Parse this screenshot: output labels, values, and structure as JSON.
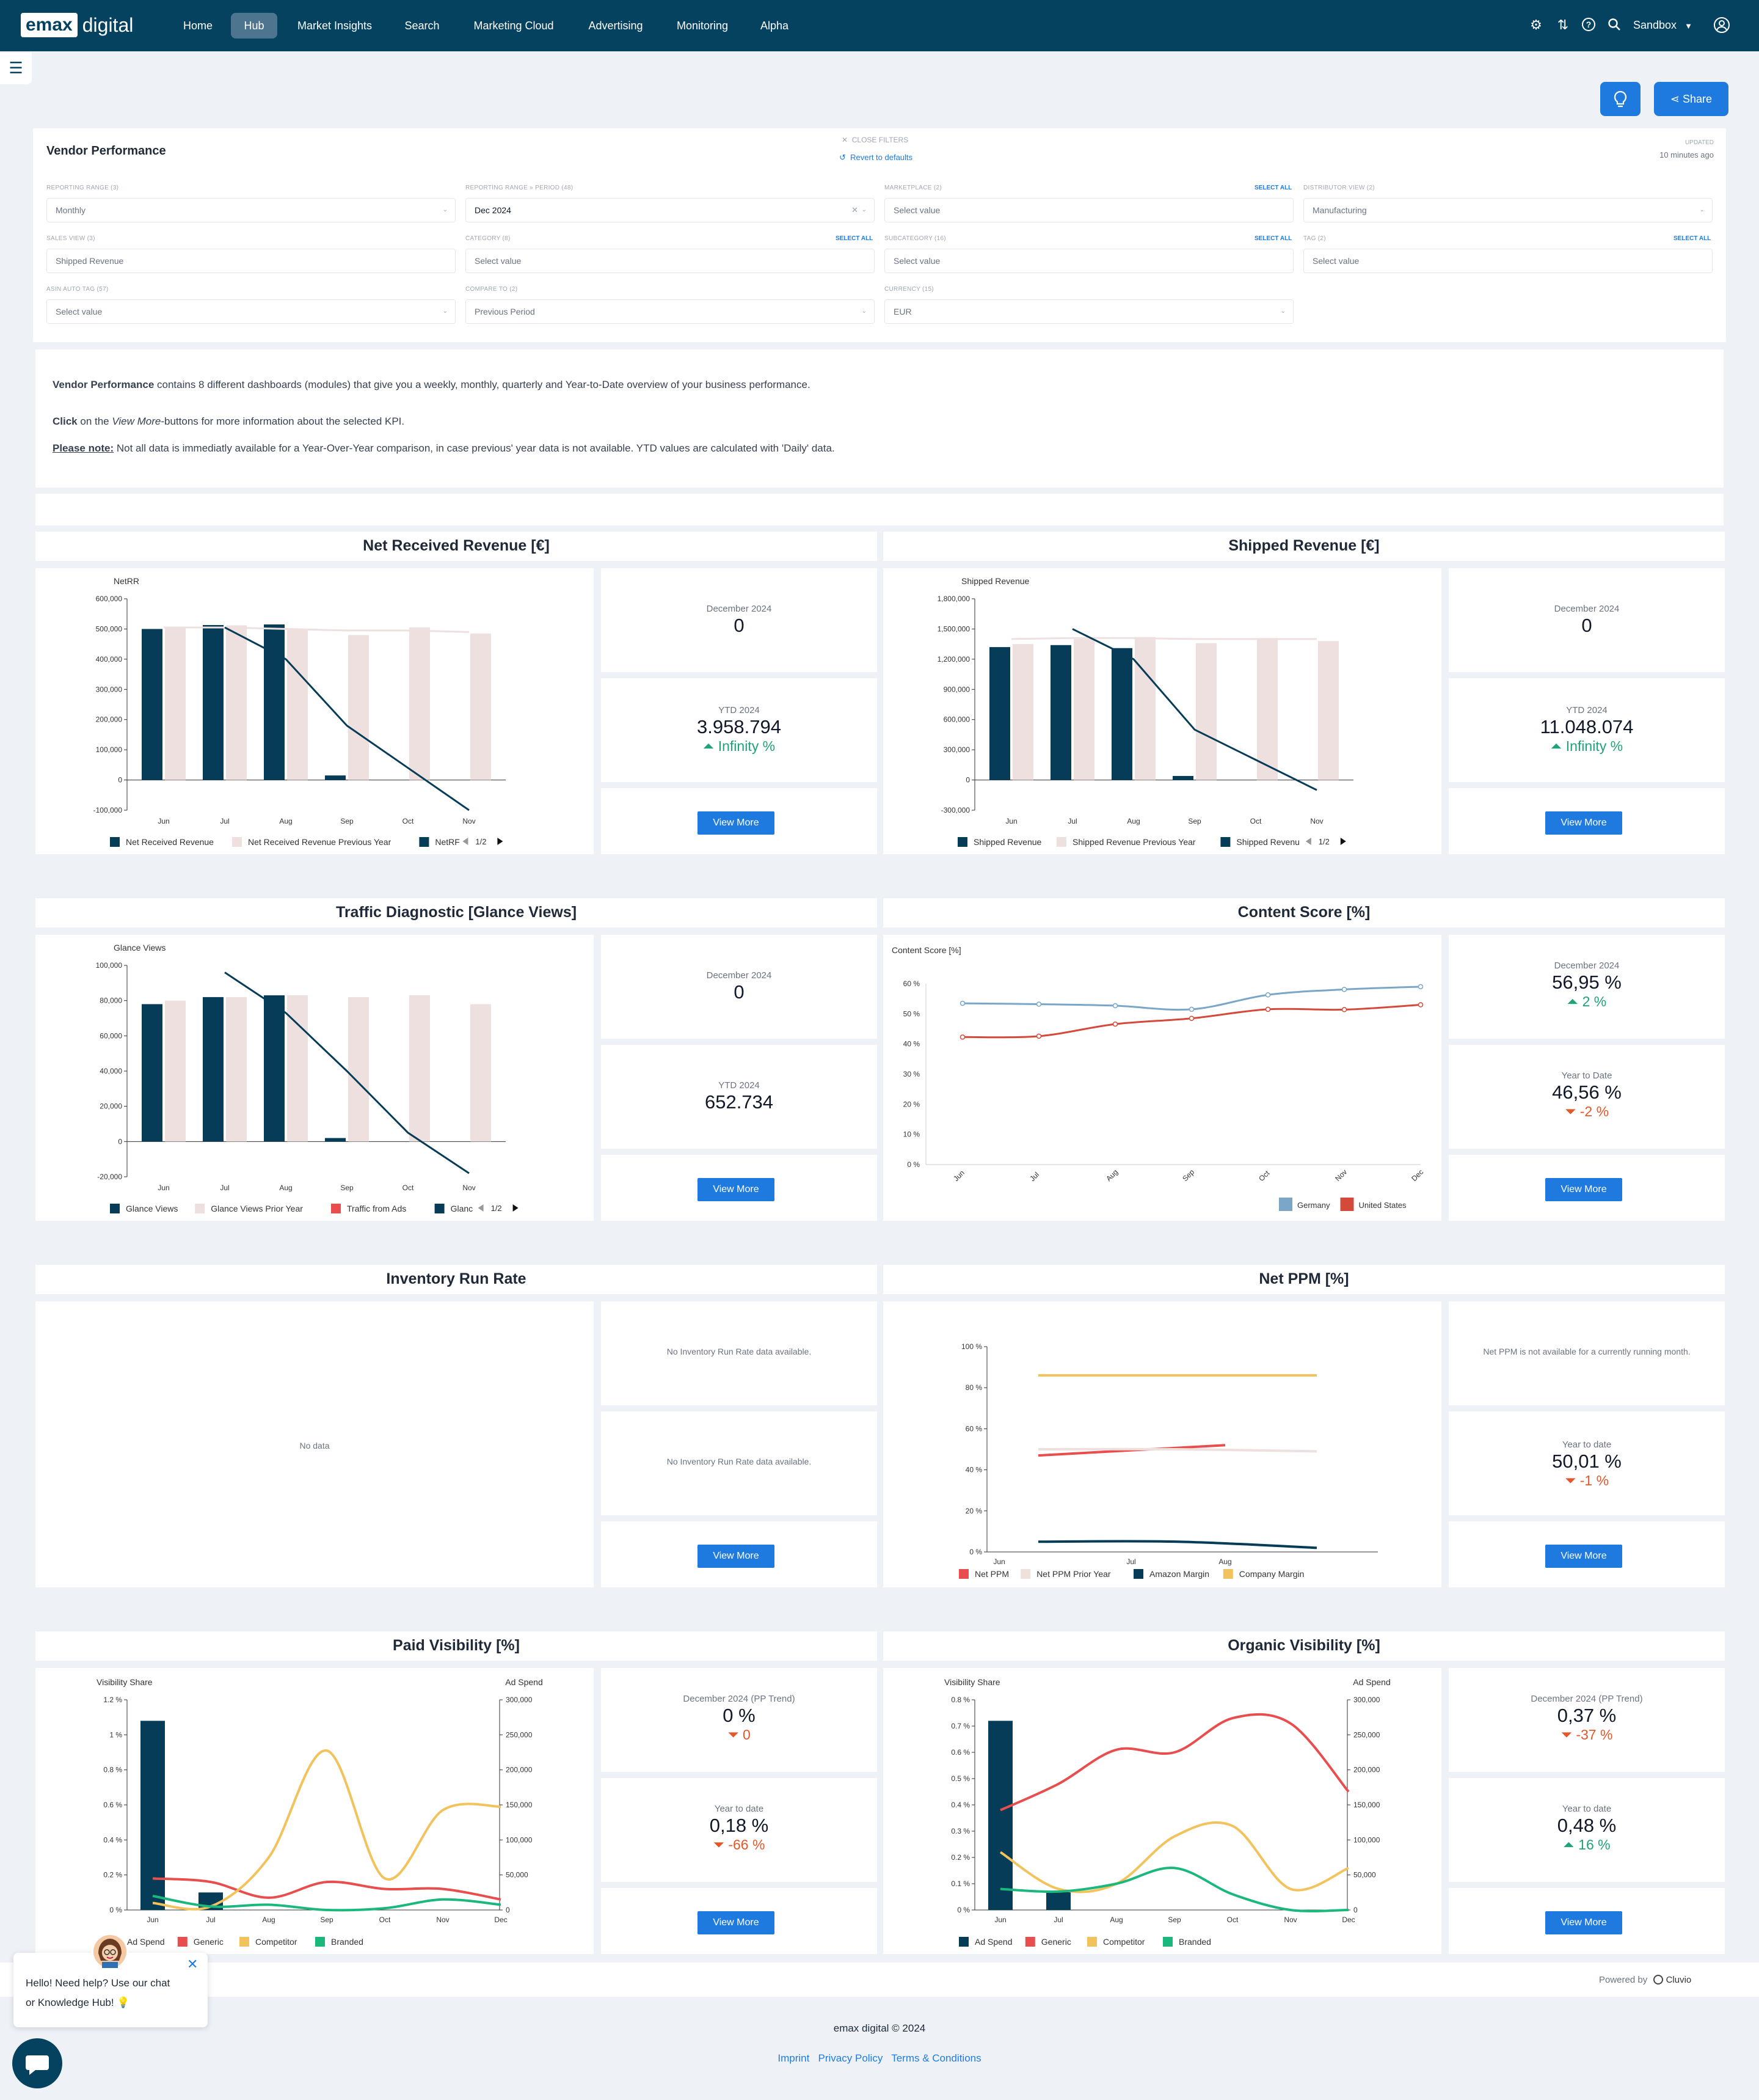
{
  "topbar": {
    "logo_box": "emax",
    "logo_text": "digital",
    "nav": [
      "Home",
      "Hub",
      "Market Insights",
      "Search",
      "Marketing Cloud",
      "Advertising",
      "Monitoring",
      "Alpha"
    ],
    "user": "Sandbox"
  },
  "actions": {
    "share": "Share"
  },
  "filters": {
    "title": "Vendor Performance",
    "close_filters": "CLOSE FILTERS",
    "revert": "Revert to defaults",
    "updated_label": "UPDATED",
    "updated_value": "10 minutes ago",
    "select_all": "SELECT ALL",
    "fields": [
      {
        "label": "REPORTING RANGE (3)",
        "value": "Monthly"
      },
      {
        "label": "REPORTING RANGE » PERIOD (48)",
        "value": "Dec 2024"
      },
      {
        "label": "MARKETPLACE (2)",
        "value": "Select value"
      },
      {
        "label": "DISTRIBUTOR VIEW (2)",
        "value": "Manufacturing"
      },
      {
        "label": "SALES VIEW (3)",
        "value": "Shipped Revenue"
      },
      {
        "label": "CATEGORY (8)",
        "value": "Select value"
      },
      {
        "label": "SUBCATEGORY (16)",
        "value": "Select value"
      },
      {
        "label": "TAG (2)",
        "value": "Select value"
      },
      {
        "label": "ASIN AUTO TAG (57)",
        "value": "Select value"
      },
      {
        "label": "COMPARE TO (2)",
        "value": "Previous Period"
      },
      {
        "label": "CURRENCY (15)",
        "value": "EUR"
      }
    ]
  },
  "info": {
    "l1_bold": "Vendor Performance",
    "l1_rest": " contains 8 different dashboards (modules) that give you a weekly, monthly, quarterly and Year-to-Date overview of your business performance.",
    "l2_bold": "Click",
    "l2_mid": " on the ",
    "l2_italic": "View More",
    "l2_rest": "-buttons for more information about the selected KPI.",
    "l3_bold": "Please note:",
    "l3_rest": " Not all data is immediatly available for a Year-Over-Year comparison, in case previous' year data is not available. YTD values are calculated with 'Daily' data."
  },
  "view_more": "View More",
  "pager": "1/2",
  "modules": {
    "nrr": {
      "title": "Net Received Revenue [€]",
      "kpi1_label": "December 2024",
      "kpi1_value": "0",
      "kpi2_label": "YTD 2024",
      "kpi2_value": "3.958.794",
      "kpi2_delta": "Infinity %"
    },
    "shipped": {
      "title": "Shipped Revenue [€]",
      "kpi1_label": "December 2024",
      "kpi1_value": "0",
      "kpi2_label": "YTD 2024",
      "kpi2_value": "11.048.074",
      "kpi2_delta": "Infinity %"
    },
    "traffic": {
      "title": "Traffic Diagnostic [Glance Views]",
      "kpi1_label": "December 2024",
      "kpi1_value": "0",
      "kpi2_label": "YTD 2024",
      "kpi2_value": "652.734"
    },
    "content": {
      "title": "Content Score [%]",
      "kpi1_label": "December 2024",
      "kpi1_value": "56,95 %",
      "kpi1_delta": "2 %",
      "kpi2_label": "Year to Date",
      "kpi2_value": "46,56 %",
      "kpi2_delta": "-2 %"
    },
    "inventory": {
      "title": "Inventory Run Rate",
      "no_data": "No data",
      "kpi1_text": "No Inventory Run Rate data available.",
      "kpi2_text": "No Inventory Run Rate data available."
    },
    "ppm": {
      "title": "Net PPM [%]",
      "kpi1_text": "Net PPM is not available for a currently running month.",
      "kpi2_label": "Year to date",
      "kpi2_value": "50,01 %",
      "kpi2_delta": "-1 %"
    },
    "paid": {
      "title": "Paid Visibility [%]",
      "kpi1_label": "December 2024 (PP Trend)",
      "kpi1_value": "0 %",
      "kpi1_delta": "0",
      "kpi2_label": "Year to date",
      "kpi2_value": "0,18 %",
      "kpi2_delta": "-66 %"
    },
    "organic": {
      "title": "Organic Visibility [%]",
      "kpi1_label": "December 2024 (PP Trend)",
      "kpi1_value": "0,37 %",
      "kpi1_delta": "-37 %",
      "kpi2_label": "Year to date",
      "kpi2_value": "0,48 %",
      "kpi2_delta": "16 %"
    }
  },
  "chart_data": [
    {
      "id": "nrr",
      "type": "bar",
      "title": "NetRR",
      "categories": [
        "Jun",
        "Jul",
        "Aug",
        "Sep",
        "Oct",
        "Nov"
      ],
      "ylim": [
        -100000,
        600000
      ],
      "yticks": [
        "600,000",
        "500,000",
        "400,000",
        "300,000",
        "200,000",
        "100,000",
        "0",
        "-100,000"
      ],
      "series": [
        {
          "name": "Net Received Revenue",
          "type": "bar",
          "color": "#063c58",
          "values": [
            500000,
            513000,
            515000,
            15000,
            null,
            null
          ]
        },
        {
          "name": "Net Received Revenue Previous Year",
          "type": "bar",
          "color": "#eee0de",
          "values": [
            505000,
            512000,
            500000,
            480000,
            505000,
            485000
          ]
        },
        {
          "name": "NetRR",
          "type": "line",
          "color": "#063c58",
          "values": [
            null,
            505000,
            400000,
            180000,
            40000,
            -100000
          ]
        },
        {
          "name": "prev-line",
          "type": "line",
          "color": "#eee0de",
          "values": [
            505000,
            505000,
            500000,
            495000,
            495000,
            490000
          ]
        }
      ],
      "legend": [
        "Net Received Revenue",
        "Net Received Revenue Previous Year",
        "NetRF"
      ]
    },
    {
      "id": "shipped",
      "type": "bar",
      "title": "Shipped Revenue",
      "categories": [
        "Jun",
        "Jul",
        "Aug",
        "Sep",
        "Oct",
        "Nov"
      ],
      "ylim": [
        -300000,
        1800000
      ],
      "yticks": [
        "1,800,000",
        "1,500,000",
        "1,200,000",
        "900,000",
        "600,000",
        "300,000",
        "0",
        "-300,000"
      ],
      "series": [
        {
          "name": "Shipped Revenue",
          "type": "bar",
          "color": "#063c58",
          "values": [
            1320000,
            1340000,
            1310000,
            40000,
            null,
            null
          ]
        },
        {
          "name": "Shipped Revenue Previous Year",
          "type": "bar",
          "color": "#eee0de",
          "values": [
            1350000,
            1400000,
            1420000,
            1360000,
            1410000,
            1380000
          ]
        },
        {
          "name": "Shipped Revenue trend",
          "type": "line",
          "color": "#063c58",
          "values": [
            null,
            1500000,
            1200000,
            500000,
            200000,
            -100000
          ]
        },
        {
          "name": "prev-line",
          "type": "line",
          "color": "#eee0de",
          "values": [
            1400000,
            1410000,
            1410000,
            1400000,
            1400000,
            1400000
          ]
        }
      ],
      "legend": [
        "Shipped Revenue",
        "Shipped Revenue Previous Year",
        "Shipped Revenu"
      ]
    },
    {
      "id": "traffic",
      "type": "bar",
      "title": "Glance Views",
      "categories": [
        "Jun",
        "Jul",
        "Aug",
        "Sep",
        "Oct",
        "Nov"
      ],
      "ylim": [
        -20000,
        100000
      ],
      "yticks": [
        "100,000",
        "80,000",
        "60,000",
        "40,000",
        "20,000",
        "0",
        "-20,000"
      ],
      "series": [
        {
          "name": "Glance Views",
          "type": "bar",
          "color": "#063c58",
          "values": [
            78000,
            82000,
            83000,
            2000,
            null,
            null
          ]
        },
        {
          "name": "Glance Views Prior Year",
          "type": "bar",
          "color": "#eee0de",
          "values": [
            80000,
            82000,
            83000,
            82000,
            83000,
            78000
          ]
        },
        {
          "name": "Glance trend",
          "type": "line",
          "color": "#063c58",
          "values": [
            null,
            96000,
            73000,
            40000,
            5000,
            -18000
          ]
        }
      ],
      "legend": [
        "Glance Views",
        "Glance Views Prior Year",
        "Traffic from Ads",
        "Glanc"
      ]
    },
    {
      "id": "content",
      "type": "line",
      "title": "Content Score [%]",
      "categories": [
        "Jun",
        "Jul",
        "Aug",
        "Sep",
        "Oct",
        "Nov",
        "Dec"
      ],
      "ylim": [
        0,
        60
      ],
      "yticks": [
        "60 %",
        "50 %",
        "40 %",
        "30 %",
        "20 %",
        "10 %",
        "0 %"
      ],
      "series": [
        {
          "name": "Germany",
          "color": "#7aa6c7",
          "values": [
            53.5,
            53.2,
            52.7,
            51.5,
            56.3,
            58.1,
            59.0
          ]
        },
        {
          "name": "United States",
          "color": "#d44a3a",
          "values": [
            42.3,
            42.6,
            46.6,
            48.5,
            51.5,
            51.4,
            53.0
          ]
        }
      ]
    },
    {
      "id": "ppm",
      "type": "line",
      "categories": [
        "Jun",
        "Jul",
        "Aug"
      ],
      "ylim": [
        0,
        100
      ],
      "yticks": [
        "100 %",
        "80 %",
        "60 %",
        "40 %",
        "20 %",
        "0 %"
      ],
      "series": [
        {
          "name": "Net PPM",
          "color": "#e84e4e",
          "values": [
            47,
            49.5,
            52
          ]
        },
        {
          "name": "Net PPM Prior Year",
          "color": "#eee0de",
          "values": [
            50,
            50,
            49
          ]
        },
        {
          "name": "Amazon Margin",
          "color": "#063c58",
          "values": [
            5,
            5,
            5
          ]
        },
        {
          "name": "Company Margin",
          "color": "#f2c25c",
          "values": [
            86,
            86,
            86
          ]
        }
      ]
    },
    {
      "id": "paid",
      "type": "bar",
      "y_title": "Visibility Share",
      "y2_title": "Ad Spend",
      "categories": [
        "Jun",
        "Jul",
        "Aug",
        "Sep",
        "Oct",
        "Nov",
        "Dec"
      ],
      "ylim": [
        0,
        1.2
      ],
      "y2lim": [
        0,
        300000
      ],
      "yticks": [
        "1.2 %",
        "1 %",
        "0.8 %",
        "0.6 %",
        "0.4 %",
        "0.2 %",
        "0 %"
      ],
      "y2ticks": [
        "300,000",
        "250,000",
        "200,000",
        "150,000",
        "100,000",
        "50,000",
        "0"
      ],
      "series": [
        {
          "name": "Ad Spend",
          "type": "bar",
          "color": "#063c58",
          "values": [
            1.08,
            0.1,
            0,
            0,
            0,
            0,
            0
          ]
        },
        {
          "name": "Generic",
          "type": "line",
          "color": "#e84e4e",
          "values": [
            0.18,
            0.16,
            0.07,
            0.16,
            0.12,
            0.12,
            0.06
          ]
        },
        {
          "name": "Competitor",
          "type": "line",
          "color": "#f2c25c",
          "values": [
            0.04,
            0.02,
            0.3,
            0.91,
            0.18,
            0.57,
            0.59
          ]
        },
        {
          "name": "Branded",
          "type": "line",
          "color": "#1ab87c",
          "values": [
            0.08,
            0.02,
            0.03,
            0.0,
            0.01,
            0.06,
            0.03
          ]
        }
      ],
      "legend": [
        "Ad Spend",
        "Generic",
        "Competitor",
        "Branded"
      ]
    },
    {
      "id": "organic",
      "type": "bar",
      "y_title": "Visibility Share",
      "y2_title": "Ad Spend",
      "categories": [
        "Jun",
        "Jul",
        "Aug",
        "Sep",
        "Oct",
        "Nov",
        "Dec"
      ],
      "ylim": [
        0,
        0.8
      ],
      "y2lim": [
        0,
        300000
      ],
      "yticks": [
        "0.8 %",
        "0.7 %",
        "0.6 %",
        "0.5 %",
        "0.4 %",
        "0.3 %",
        "0.2 %",
        "0.1 %",
        "0 %"
      ],
      "y2ticks": [
        "300,000",
        "250,000",
        "200,000",
        "150,000",
        "100,000",
        "50,000",
        "0"
      ],
      "series": [
        {
          "name": "Ad Spend",
          "type": "bar",
          "color": "#063c58",
          "values": [
            0.72,
            0.07,
            0,
            0,
            0,
            0,
            0
          ]
        },
        {
          "name": "Generic",
          "type": "line",
          "color": "#e84e4e",
          "values": [
            0.38,
            0.48,
            0.61,
            0.6,
            0.73,
            0.71,
            0.45
          ]
        },
        {
          "name": "Competitor",
          "type": "line",
          "color": "#f2c25c",
          "values": [
            0.22,
            0.08,
            0.1,
            0.28,
            0.32,
            0.08,
            0.16
          ]
        },
        {
          "name": "Branded",
          "type": "line",
          "color": "#1ab87c",
          "values": [
            0.08,
            0.07,
            0.1,
            0.16,
            0.06,
            0.0,
            0.0
          ]
        }
      ],
      "legend": [
        "Ad Spend",
        "Generic",
        "Competitor",
        "Branded"
      ]
    }
  ],
  "footer": {
    "powered": "Powered by",
    "cluvio": "Cluvio",
    "copyright": "emax digital © 2024",
    "links": [
      "Imprint",
      "Privacy Policy",
      "Terms & Conditions"
    ]
  },
  "chat": {
    "text1": "Hello! Need help? Use our chat",
    "text2": "or Knowledge Hub! 💡"
  }
}
